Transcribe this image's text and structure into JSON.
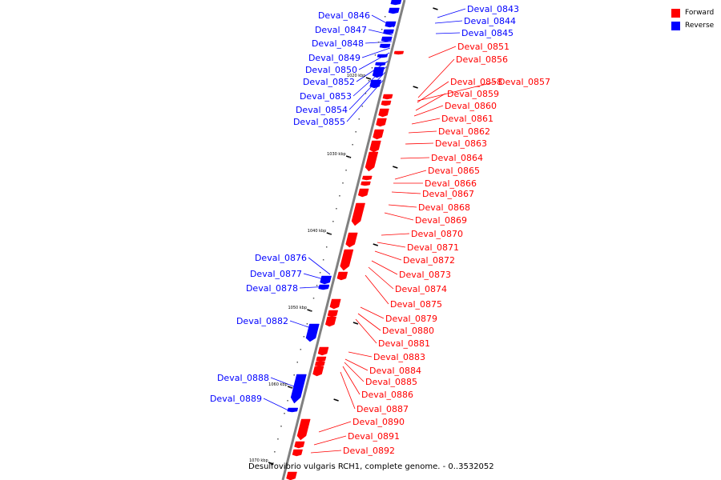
{
  "caption": "Desulfovibrio vulgaris RCH1, complete genome. - 0..3532052",
  "legend": [
    {
      "label": "Forward",
      "color": "#ff0000"
    },
    {
      "label": "Reverse",
      "color": "#0000ff"
    }
  ],
  "colors": {
    "forward": "#ff0000",
    "reverse": "#0000ff",
    "backbone": "#808080"
  },
  "ticks": [
    "1020 kbp",
    "1030 kbp",
    "1040 kbp",
    "1050 kbp",
    "1060 kbp",
    "1070 kbp"
  ],
  "reverse_genes": [
    {
      "label": "Deval_0843"
    },
    {
      "label": "Deval_0844"
    },
    {
      "label": "Deval_0845"
    },
    {
      "label": "Deval_0846"
    },
    {
      "label": "Deval_0847"
    },
    {
      "label": "Deval_0848"
    },
    {
      "label": "Deval_0849"
    },
    {
      "label": "Deval_0850"
    },
    {
      "label": "Deval_0852"
    },
    {
      "label": "Deval_0853"
    },
    {
      "label": "Deval_0854"
    },
    {
      "label": "Deval_0855"
    },
    {
      "label": "Deval_0876"
    },
    {
      "label": "Deval_0877"
    },
    {
      "label": "Deval_0878"
    },
    {
      "label": "Deval_0882"
    },
    {
      "label": "Deval_0888"
    },
    {
      "label": "Deval_0889"
    }
  ],
  "forward_genes": [
    {
      "label": "Deval_0851"
    },
    {
      "label": "Deval_0856"
    },
    {
      "label": "Deval_0858"
    },
    {
      "label": "Deval_0857"
    },
    {
      "label": "Deval_0859"
    },
    {
      "label": "Deval_0860"
    },
    {
      "label": "Deval_0861"
    },
    {
      "label": "Deval_0862"
    },
    {
      "label": "Deval_0863"
    },
    {
      "label": "Deval_0864"
    },
    {
      "label": "Deval_0865"
    },
    {
      "label": "Deval_0866"
    },
    {
      "label": "Deval_0867"
    },
    {
      "label": "Deval_0868"
    },
    {
      "label": "Deval_0869"
    },
    {
      "label": "Deval_0870"
    },
    {
      "label": "Deval_0871"
    },
    {
      "label": "Deval_0872"
    },
    {
      "label": "Deval_0873"
    },
    {
      "label": "Deval_0874"
    },
    {
      "label": "Deval_0875"
    },
    {
      "label": "Deval_0879"
    },
    {
      "label": "Deval_0880"
    },
    {
      "label": "Deval_0881"
    },
    {
      "label": "Deval_0883"
    },
    {
      "label": "Deval_0884"
    },
    {
      "label": "Deval_0885"
    },
    {
      "label": "Deval_0886"
    },
    {
      "label": "Deval_0887"
    },
    {
      "label": "Deval_0890"
    },
    {
      "label": "Deval_0891"
    },
    {
      "label": "Deval_0892"
    }
  ]
}
